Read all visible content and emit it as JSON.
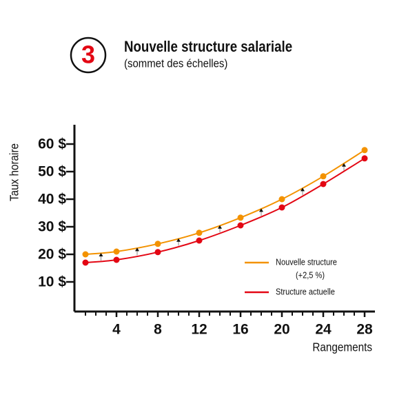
{
  "chart_data": {
    "type": "line",
    "step": "3",
    "title": "Nouvelle structure salariale",
    "subtitle": "(sommet des échelles)",
    "y_label": "Taux horaire",
    "x_label": "Rangements",
    "x": [
      1,
      4,
      8,
      12,
      16,
      20,
      24,
      28
    ],
    "series": [
      {
        "name": "Nouvelle structure",
        "name_note": "(+2,5 %)",
        "color": "#f39200",
        "values": [
          20,
          21,
          23.8,
          27.8,
          33.3,
          40,
          48.3,
          57.8
        ]
      },
      {
        "name": "Structure actuelle",
        "color": "#e30613",
        "values": [
          17,
          18,
          20.8,
          25,
          30.5,
          37,
          45.5,
          54.8
        ]
      }
    ],
    "xlim": [
      0,
      29
    ],
    "ylim": [
      0,
      67
    ],
    "xticks": [
      4,
      8,
      12,
      16,
      20,
      24,
      28
    ],
    "yticks": [
      {
        "value": 10,
        "label": "10 $"
      },
      {
        "value": 20,
        "label": "20 $"
      },
      {
        "value": 30,
        "label": "30 $"
      },
      {
        "value": 40,
        "label": "40 $"
      },
      {
        "value": 50,
        "label": "50 $"
      },
      {
        "value": 60,
        "label": "60 $"
      }
    ]
  }
}
